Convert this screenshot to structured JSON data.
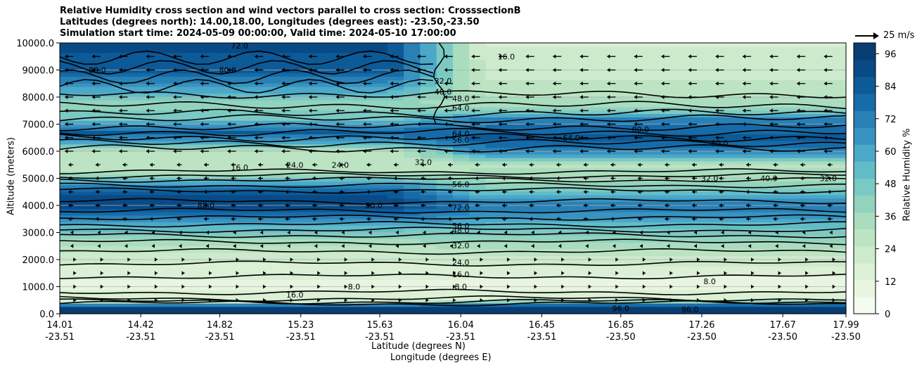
{
  "titles": {
    "line1": "Relative Humidity cross section and wind vectors parallel to cross section: CrosssectionB",
    "line2": "Latitudes (degrees north): 14.00,18.00, Longitudes (degrees east): -23.50,-23.50",
    "line3": "Simulation start time: 2024-05-09 00:00:00, Valid time: 2024-05-10 17:00:00"
  },
  "axes": {
    "xlabel_lat": "Latitude (degrees N)",
    "xlabel_lon": "Longitude (degrees E)",
    "ylabel": "Altitude (meters)"
  },
  "reference_vector": "25 m/s",
  "colorbar": {
    "label": "Relative Humidity %",
    "ticks": [
      "0",
      "12",
      "24",
      "36",
      "48",
      "60",
      "72",
      "84",
      "96"
    ],
    "colors": [
      "#f4fbf0",
      "#e8f5e0",
      "#dbf0d5",
      "#cdeacd",
      "#bce4c3",
      "#a9ddbe",
      "#92d3be",
      "#7bc9c3",
      "#62bcc8",
      "#4ca8c9",
      "#3893c0",
      "#2880b6",
      "#176ba8",
      "#0d5a98",
      "#084a86",
      "#083d74"
    ]
  },
  "chart_data": {
    "type": "heatmap",
    "title": "Relative Humidity cross section and wind vectors parallel to cross section: CrosssectionB",
    "x_ticks": [
      {
        "lat": "14.01",
        "lon": "-23.51"
      },
      {
        "lat": "14.42",
        "lon": "-23.51"
      },
      {
        "lat": "14.82",
        "lon": "-23.51"
      },
      {
        "lat": "15.23",
        "lon": "-23.51"
      },
      {
        "lat": "15.63",
        "lon": "-23.51"
      },
      {
        "lat": "16.04",
        "lon": "-23.51"
      },
      {
        "lat": "16.45",
        "lon": "-23.51"
      },
      {
        "lat": "16.85",
        "lon": "-23.50"
      },
      {
        "lat": "17.26",
        "lon": "-23.50"
      },
      {
        "lat": "17.67",
        "lon": "-23.50"
      },
      {
        "lat": "17.99",
        "lon": "-23.50"
      }
    ],
    "y_ticks": [
      "0.0",
      "1000.0",
      "2000.0",
      "3000.0",
      "4000.0",
      "5000.0",
      "6000.0",
      "7000.0",
      "8000.0",
      "9000.0",
      "10000.0"
    ],
    "ylim": [
      0,
      10000
    ],
    "clim": [
      0,
      100
    ],
    "rh_profile_west": [
      {
        "alt": 0,
        "rh": 96
      },
      {
        "alt": 250,
        "rh": 98
      },
      {
        "alt": 450,
        "rh": 20
      },
      {
        "alt": 1000,
        "rh": 10
      },
      {
        "alt": 2000,
        "rh": 20
      },
      {
        "alt": 2600,
        "rh": 34
      },
      {
        "alt": 3200,
        "rh": 55
      },
      {
        "alt": 3600,
        "rh": 75
      },
      {
        "alt": 4000,
        "rh": 92
      },
      {
        "alt": 4500,
        "rh": 85
      },
      {
        "alt": 4900,
        "rh": 55
      },
      {
        "alt": 5300,
        "rh": 25
      },
      {
        "alt": 6000,
        "rh": 25
      },
      {
        "alt": 6300,
        "rh": 60
      },
      {
        "alt": 6700,
        "rh": 82
      },
      {
        "alt": 7200,
        "rh": 48
      },
      {
        "alt": 7800,
        "rh": 40
      },
      {
        "alt": 8300,
        "rh": 62
      },
      {
        "alt": 9000,
        "rh": 84
      },
      {
        "alt": 10000,
        "rh": 90
      }
    ],
    "rh_profile_east": [
      {
        "alt": 0,
        "rh": 96
      },
      {
        "alt": 250,
        "rh": 97
      },
      {
        "alt": 500,
        "rh": 20
      },
      {
        "alt": 1000,
        "rh": 8
      },
      {
        "alt": 2000,
        "rh": 22
      },
      {
        "alt": 2600,
        "rh": 36
      },
      {
        "alt": 3200,
        "rh": 52
      },
      {
        "alt": 3600,
        "rh": 66
      },
      {
        "alt": 4000,
        "rh": 74
      },
      {
        "alt": 4500,
        "rh": 48
      },
      {
        "alt": 5000,
        "rh": 35
      },
      {
        "alt": 5500,
        "rh": 30
      },
      {
        "alt": 6000,
        "rh": 72
      },
      {
        "alt": 6500,
        "rh": 84
      },
      {
        "alt": 7200,
        "rh": 70
      },
      {
        "alt": 7600,
        "rh": 35
      },
      {
        "alt": 8300,
        "rh": 28
      },
      {
        "alt": 9000,
        "rh": 22
      },
      {
        "alt": 10000,
        "rh": 18
      }
    ],
    "contour_labels": [
      {
        "text": "8.0",
        "lat": 16.04,
        "alt": 1000
      },
      {
        "text": "16.0",
        "lat": 16.04,
        "alt": 1450
      },
      {
        "text": "24.0",
        "lat": 16.04,
        "alt": 1900
      },
      {
        "text": "32.0",
        "lat": 16.04,
        "alt": 2520
      },
      {
        "text": "48.0",
        "lat": 16.04,
        "alt": 3080
      },
      {
        "text": "56.0",
        "lat": 16.04,
        "alt": 3250
      },
      {
        "text": "72.0",
        "lat": 16.04,
        "alt": 3920
      },
      {
        "text": "56.0",
        "lat": 16.04,
        "alt": 4780
      },
      {
        "text": "32.0",
        "lat": 15.85,
        "alt": 5600
      },
      {
        "text": "56.0",
        "lat": 16.04,
        "alt": 6420
      },
      {
        "text": "64.0",
        "lat": 16.04,
        "alt": 6650
      },
      {
        "text": "64.0",
        "lat": 16.6,
        "alt": 6500
      },
      {
        "text": "64.0",
        "lat": 16.04,
        "alt": 7600
      },
      {
        "text": "48.0",
        "lat": 16.04,
        "alt": 7950
      },
      {
        "text": "40.0",
        "lat": 15.95,
        "alt": 8200
      },
      {
        "text": "32.0",
        "lat": 15.95,
        "alt": 8600
      },
      {
        "text": "16.0",
        "lat": 16.27,
        "alt": 9500
      },
      {
        "text": "80.0",
        "lat": 14.86,
        "alt": 9000
      },
      {
        "text": "72.0",
        "lat": 14.92,
        "alt": 9900
      },
      {
        "text": "80.0",
        "lat": 14.2,
        "alt": 9000
      },
      {
        "text": "88.0",
        "lat": 14.75,
        "alt": 4000
      },
      {
        "text": "80.0",
        "lat": 15.6,
        "alt": 4000
      },
      {
        "text": "16.0",
        "lat": 14.92,
        "alt": 5400
      },
      {
        "text": "24.0",
        "lat": 15.2,
        "alt": 5500
      },
      {
        "text": "24.0",
        "lat": 15.43,
        "alt": 5500
      },
      {
        "text": "80.0",
        "lat": 16.95,
        "alt": 6800
      },
      {
        "text": "80.0",
        "lat": 17.35,
        "alt": 6300
      },
      {
        "text": "40.0",
        "lat": 17.6,
        "alt": 5000
      },
      {
        "text": "32.0",
        "lat": 17.3,
        "alt": 5000
      },
      {
        "text": "32.0",
        "lat": 17.9,
        "alt": 5000
      },
      {
        "text": "8.0",
        "lat": 17.3,
        "alt": 1200
      },
      {
        "text": "8.0",
        "lat": 15.5,
        "alt": 1000
      },
      {
        "text": "16.0",
        "lat": 15.2,
        "alt": 700
      },
      {
        "text": "96.0",
        "lat": 16.85,
        "alt": 200
      },
      {
        "text": "96.0",
        "lat": 17.2,
        "alt": 150
      }
    ]
  }
}
